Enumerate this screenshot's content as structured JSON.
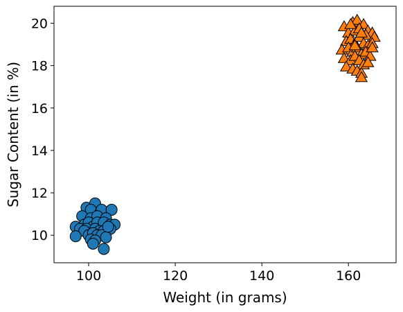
{
  "chart_data": {
    "type": "scatter",
    "title": "",
    "xlabel": "Weight (in grams)",
    "ylabel": "Sugar Content (in %)",
    "xlim": [
      92,
      171
    ],
    "ylim": [
      8.7,
      20.8
    ],
    "xticks": [
      100,
      120,
      140,
      160
    ],
    "yticks": [
      10,
      12,
      14,
      16,
      18,
      20
    ],
    "grid": false,
    "legend": "none",
    "series": [
      {
        "marker": "circle",
        "color": "#1f77b4",
        "points": [
          [
            99.5,
            11.3
          ],
          [
            101.5,
            11.5
          ],
          [
            100.5,
            11.2
          ],
          [
            102.5,
            11.0
          ],
          [
            103.0,
            11.2
          ],
          [
            105.3,
            11.2
          ],
          [
            98.5,
            10.9
          ],
          [
            100.5,
            10.8
          ],
          [
            102.0,
            10.9
          ],
          [
            104.0,
            10.8
          ],
          [
            99.0,
            10.5
          ],
          [
            100.0,
            10.6
          ],
          [
            101.0,
            10.4
          ],
          [
            102.0,
            10.6
          ],
          [
            103.5,
            10.6
          ],
          [
            105.0,
            10.5
          ],
          [
            106.0,
            10.5
          ],
          [
            97.0,
            10.4
          ],
          [
            98.0,
            10.3
          ],
          [
            99.5,
            10.3
          ],
          [
            101.5,
            10.3
          ],
          [
            102.5,
            10.2
          ],
          [
            103.5,
            10.2
          ],
          [
            105.0,
            10.3
          ],
          [
            99.0,
            10.2
          ],
          [
            100.0,
            10.0
          ],
          [
            101.0,
            10.1
          ],
          [
            102.0,
            10.0
          ],
          [
            103.0,
            10.0
          ],
          [
            104.0,
            9.9
          ],
          [
            97.0,
            9.95
          ],
          [
            100.5,
            9.8
          ],
          [
            101.5,
            9.75
          ],
          [
            101.0,
            9.6
          ],
          [
            103.5,
            9.35
          ],
          [
            104.5,
            10.4
          ]
        ]
      },
      {
        "marker": "triangle",
        "color": "#ff7f0e",
        "points": [
          [
            159.0,
            19.8
          ],
          [
            161.0,
            20.0
          ],
          [
            162.0,
            20.1
          ],
          [
            163.5,
            19.9
          ],
          [
            164.5,
            19.6
          ],
          [
            165.5,
            19.5
          ],
          [
            160.0,
            19.5
          ],
          [
            161.5,
            19.6
          ],
          [
            162.5,
            19.7
          ],
          [
            164.0,
            19.4
          ],
          [
            166.0,
            19.3
          ],
          [
            159.5,
            19.1
          ],
          [
            160.5,
            19.2
          ],
          [
            161.5,
            19.0
          ],
          [
            162.5,
            19.3
          ],
          [
            163.5,
            19.0
          ],
          [
            164.5,
            18.9
          ],
          [
            165.5,
            19.0
          ],
          [
            158.5,
            18.7
          ],
          [
            160.0,
            18.8
          ],
          [
            161.0,
            18.6
          ],
          [
            162.0,
            18.8
          ],
          [
            163.0,
            18.5
          ],
          [
            164.0,
            18.6
          ],
          [
            165.0,
            18.4
          ],
          [
            159.0,
            18.3
          ],
          [
            160.5,
            18.2
          ],
          [
            161.5,
            18.4
          ],
          [
            162.5,
            18.2
          ],
          [
            163.5,
            18.0
          ],
          [
            164.5,
            18.1
          ],
          [
            159.5,
            17.9
          ],
          [
            161.0,
            17.8
          ],
          [
            162.0,
            17.7
          ],
          [
            163.0,
            17.6
          ],
          [
            163.0,
            17.4
          ],
          [
            165.5,
            18.8
          ],
          [
            160.5,
            19.9
          ],
          [
            163.0,
            19.5
          ],
          [
            161.5,
            18.9
          ]
        ]
      }
    ]
  }
}
